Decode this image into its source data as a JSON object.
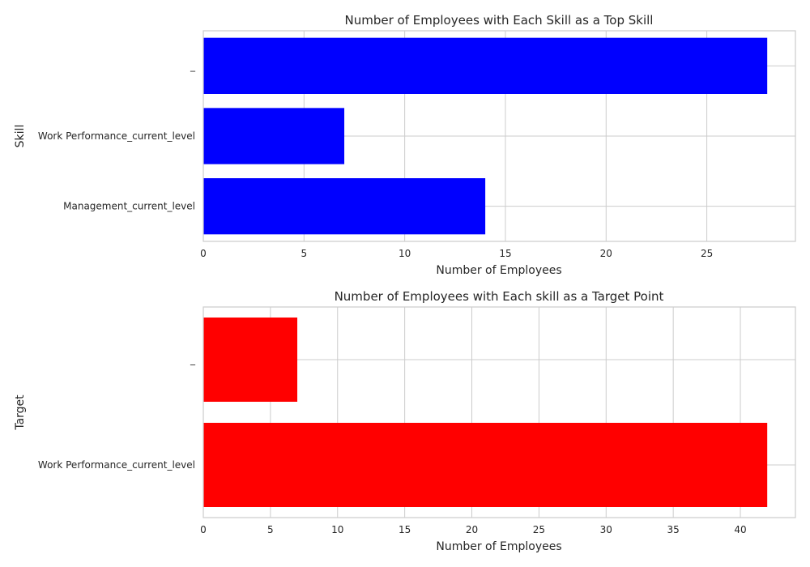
{
  "chart_data": [
    {
      "type": "bar",
      "orientation": "horizontal",
      "title": "Number of Employees with Each Skill as a Top Skill",
      "xlabel": "Number of Employees",
      "ylabel": "Skill",
      "categories": [
        "Management_current_level",
        "Work Performance_current_level",
        "_"
      ],
      "values": [
        14,
        7,
        28
      ],
      "xlim": [
        0,
        29.4
      ],
      "xticks": [
        0,
        5,
        10,
        15,
        20,
        25
      ],
      "bar_color": "#0000ff",
      "grid": true
    },
    {
      "type": "bar",
      "orientation": "horizontal",
      "title": "Number of Employees with Each skill as a Target Point",
      "xlabel": "Number of Employees",
      "ylabel": "Target",
      "categories": [
        "Work Performance_current_level",
        "_"
      ],
      "values": [
        42,
        7
      ],
      "xlim": [
        0,
        44.1
      ],
      "xticks": [
        0,
        5,
        10,
        15,
        20,
        25,
        30,
        35,
        40
      ],
      "bar_color": "#ff0000",
      "grid": true
    }
  ]
}
